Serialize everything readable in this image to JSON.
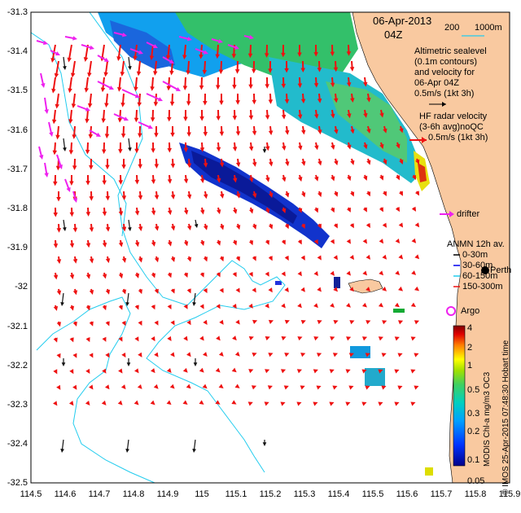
{
  "map": {
    "title_date": "06-Apr-2013",
    "title_time": "04Z",
    "scale_label": "200",
    "scale_depth": "1000m",
    "altimetric": {
      "line1": "Altimetric sealevel",
      "line2": "(0.1m contours)",
      "line3": "and velocity for",
      "line4": "06-Apr 04Z",
      "line5": "0.5m/s (1kt 3h)"
    },
    "hf_radar": {
      "line1": "HF radar velocity",
      "line2": "(3-6h avg)noQC",
      "line3": "0.5m/s (1kt 3h)"
    },
    "drifter_label": "drifter",
    "anmn": {
      "title": "ANMN 12h av.",
      "items": [
        "0-30m",
        "30-60m",
        "60-150m",
        "150-300m"
      ]
    },
    "place_label": "Perth",
    "argo_label": "Argo",
    "credit": "© IMOS 25-Apr-2015 07:48:30 Hobart time",
    "colorbar_title": "MODIS Chl-a mg/m3 OC3",
    "colorbar_ticks": [
      "4",
      "2",
      "1",
      "0.5",
      "0.3",
      "0.2",
      "0.1",
      "0.05"
    ],
    "y_ticks": [
      "-31.3",
      "-31.4",
      "-31.5",
      "-31.6",
      "-31.7",
      "-31.8",
      "-31.9",
      "-32",
      "-32.1",
      "-32.2",
      "-32.3",
      "-32.4",
      "-32.5"
    ],
    "x_ticks": [
      "114.5",
      "114.6",
      "114.7",
      "114.8",
      "114.9",
      "115",
      "115.1",
      "115.2",
      "115.3",
      "115.4",
      "115.5",
      "115.6",
      "115.7",
      "115.8",
      "115.9"
    ],
    "colors": {
      "land": "#f9c9a0",
      "radar_arrow": "#ee1111",
      "drifter_arrow": "#ee22ee",
      "shelf_contour": "#22ccee",
      "altimetry_arrow": "#111111"
    }
  }
}
